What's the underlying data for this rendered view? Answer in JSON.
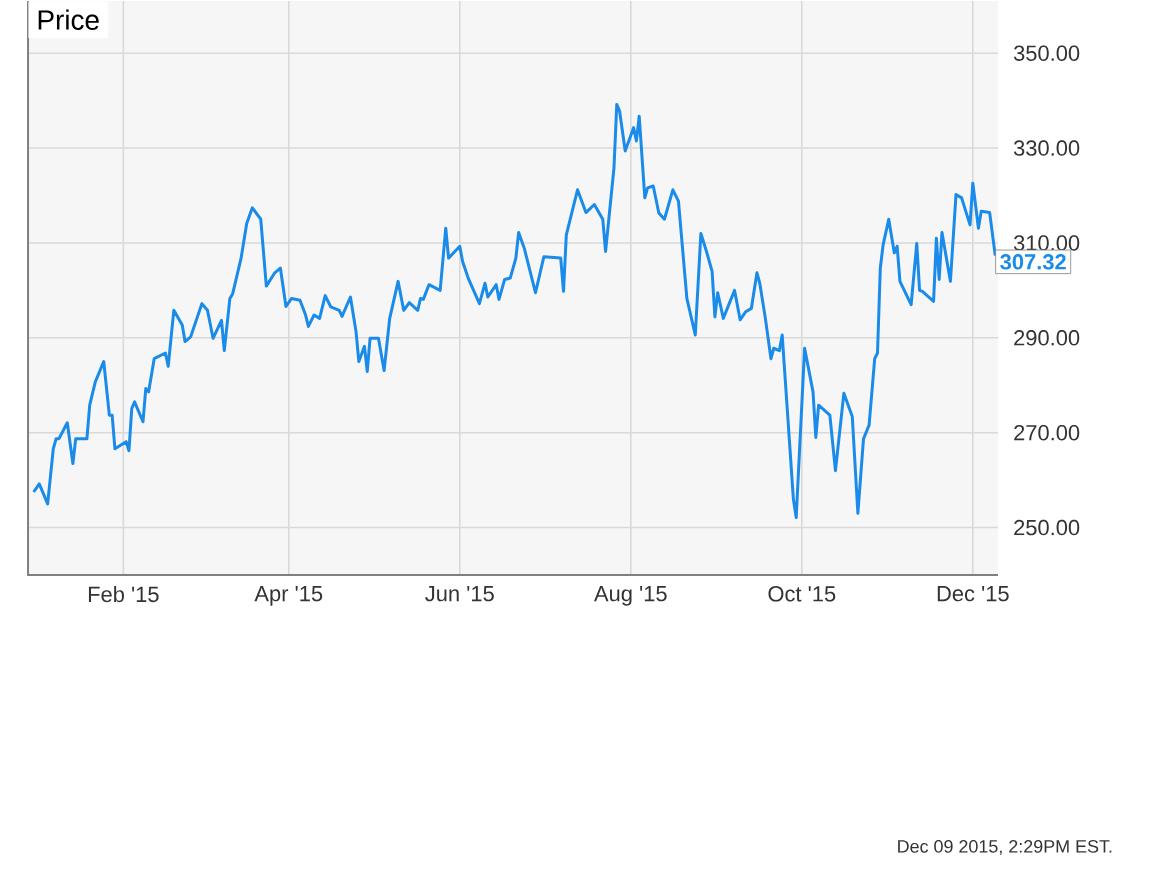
{
  "chart_data": {
    "type": "line",
    "title": "Price",
    "x": [
      "2014-12-31",
      "2015-01-02",
      "2015-01-05",
      "2015-01-07",
      "2015-01-08",
      "2015-01-09",
      "2015-01-12",
      "2015-01-14",
      "2015-01-15",
      "2015-01-19",
      "2015-01-20",
      "2015-01-21",
      "2015-01-22",
      "2015-01-25",
      "2015-01-27",
      "2015-01-28",
      "2015-01-29",
      "2015-02-02",
      "2015-02-03",
      "2015-02-04",
      "2015-02-05",
      "2015-02-08",
      "2015-02-09",
      "2015-02-10",
      "2015-02-12",
      "2015-02-16",
      "2015-02-17",
      "2015-02-19",
      "2015-02-22",
      "2015-02-23",
      "2015-02-25",
      "2015-03-01",
      "2015-03-03",
      "2015-03-05",
      "2015-03-08",
      "2015-03-09",
      "2015-03-11",
      "2015-03-12",
      "2015-03-15",
      "2015-03-17",
      "2015-03-19",
      "2015-03-22",
      "2015-03-24",
      "2015-03-27",
      "2015-03-29",
      "2015-03-31",
      "2015-04-02",
      "2015-04-05",
      "2015-04-07",
      "2015-04-08",
      "2015-04-10",
      "2015-04-12",
      "2015-04-14",
      "2015-04-16",
      "2015-04-19",
      "2015-04-20",
      "2015-04-23",
      "2015-04-25",
      "2015-04-26",
      "2015-04-28",
      "2015-04-29",
      "2015-04-30",
      "2015-05-03",
      "2015-05-05",
      "2015-05-07",
      "2015-05-10",
      "2015-05-12",
      "2015-05-14",
      "2015-05-17",
      "2015-05-18",
      "2015-05-19",
      "2015-05-21",
      "2015-05-25",
      "2015-05-27",
      "2015-05-28",
      "2015-06-01",
      "2015-06-02",
      "2015-06-04",
      "2015-06-08",
      "2015-06-10",
      "2015-06-11",
      "2015-06-14",
      "2015-06-15",
      "2015-06-17",
      "2015-06-19",
      "2015-06-21",
      "2015-06-22",
      "2015-06-24",
      "2015-06-28",
      "2015-07-01",
      "2015-07-07",
      "2015-07-08",
      "2015-07-09",
      "2015-07-13",
      "2015-07-16",
      "2015-07-19",
      "2015-07-22",
      "2015-07-23",
      "2015-07-26",
      "2015-07-27",
      "2015-07-28",
      "2015-07-30",
      "2015-08-02",
      "2015-08-03",
      "2015-08-04",
      "2015-08-06",
      "2015-08-07",
      "2015-08-09",
      "2015-08-11",
      "2015-08-13",
      "2015-08-16",
      "2015-08-18",
      "2015-08-21",
      "2015-08-24",
      "2015-08-26",
      "2015-08-28",
      "2015-08-30",
      "2015-08-31",
      "2015-09-01",
      "2015-09-03",
      "2015-09-07",
      "2015-09-09",
      "2015-09-11",
      "2015-09-13",
      "2015-09-15",
      "2015-09-16",
      "2015-09-18",
      "2015-09-20",
      "2015-09-21",
      "2015-09-23",
      "2015-09-24",
      "2015-09-28",
      "2015-09-29",
      "2015-10-02",
      "2015-10-05",
      "2015-10-06",
      "2015-10-07",
      "2015-10-11",
      "2015-10-13",
      "2015-10-16",
      "2015-10-19",
      "2015-10-21",
      "2015-10-23",
      "2015-10-25",
      "2015-10-27",
      "2015-10-28",
      "2015-10-29",
      "2015-10-30",
      "2015-11-01",
      "2015-11-03",
      "2015-11-04",
      "2015-11-05",
      "2015-11-09",
      "2015-11-11",
      "2015-11-12",
      "2015-11-13",
      "2015-11-17",
      "2015-11-18",
      "2015-11-19",
      "2015-11-20",
      "2015-11-23",
      "2015-11-25",
      "2015-11-27",
      "2015-11-30",
      "2015-12-01",
      "2015-12-03",
      "2015-12-04",
      "2015-12-07",
      "2015-12-09"
    ],
    "series": [
      {
        "color": "#1a8be8",
        "values": [
          257.5,
          259.2,
          255.0,
          266.6,
          268.7,
          268.7,
          272.1,
          263.5,
          268.7,
          268.7,
          275.8,
          278.3,
          280.7,
          285.0,
          273.7,
          273.7,
          266.6,
          268.1,
          266.2,
          275.1,
          276.5,
          272.3,
          279.3,
          278.6,
          285.6,
          286.8,
          284.0,
          295.8,
          292.7,
          289.2,
          290.2,
          297.2,
          295.8,
          289.9,
          293.7,
          287.3,
          298.3,
          299.3,
          306.8,
          314.1,
          317.4,
          315.0,
          300.9,
          303.7,
          304.7,
          296.6,
          298.3,
          297.9,
          294.8,
          292.4,
          294.8,
          294.1,
          298.9,
          296.5,
          295.8,
          294.5,
          298.6,
          291.3,
          285.0,
          288.2,
          282.9,
          289.9,
          289.9,
          283.1,
          294.1,
          301.9,
          295.8,
          297.4,
          295.8,
          298.3,
          298.1,
          301.2,
          300.0,
          313.1,
          306.8,
          309.3,
          306.1,
          302.6,
          297.2,
          301.5,
          298.6,
          301.2,
          298.1,
          302.3,
          302.6,
          306.8,
          312.2,
          308.9,
          299.5,
          307.1,
          306.8,
          299.8,
          311.7,
          321.2,
          316.4,
          318.1,
          315.0,
          308.2,
          325.8,
          339.2,
          337.8,
          329.4,
          334.3,
          331.5,
          336.7,
          319.5,
          321.6,
          322.0,
          316.3,
          315.0,
          321.2,
          318.8,
          298.3,
          290.6,
          312.0,
          308.2,
          304.0,
          294.4,
          299.5,
          294.1,
          300.0,
          293.8,
          295.5,
          296.2,
          303.7,
          301.5,
          294.1,
          285.6,
          287.8,
          287.3,
          290.6,
          256.0,
          252.1,
          287.8,
          278.6,
          269.0,
          275.8,
          273.7,
          262.0,
          278.3,
          273.4,
          253.0,
          268.7,
          271.6,
          285.6,
          286.8,
          304.7,
          309.6,
          315.0,
          307.9,
          309.3,
          301.9,
          297.0,
          309.9,
          300.0,
          299.8,
          297.7,
          311.0,
          302.3,
          312.2,
          301.9,
          320.2,
          319.5,
          313.8,
          322.6,
          313.1,
          316.7,
          316.4,
          307.32
        ]
      }
    ],
    "xlim": [
      "2014-12-29",
      "2015-12-10"
    ],
    "xticks": [
      {
        "value": "2015-02-01",
        "label": "Feb '15"
      },
      {
        "value": "2015-04-01",
        "label": "Apr '15"
      },
      {
        "value": "2015-06-01",
        "label": "Jun '15"
      },
      {
        "value": "2015-08-01",
        "label": "Aug '15"
      },
      {
        "value": "2015-10-01",
        "label": "Oct '15"
      },
      {
        "value": "2015-12-01",
        "label": "Dec '15"
      }
    ],
    "ylim": [
      240,
      361
    ],
    "yticks": [
      {
        "value": 250,
        "label": "250.00"
      },
      {
        "value": 270,
        "label": "270.00"
      },
      {
        "value": 290,
        "label": "290.00"
      },
      {
        "value": 310,
        "label": "310.00"
      },
      {
        "value": 330,
        "label": "330.00"
      },
      {
        "value": 350,
        "label": "350.00"
      }
    ],
    "grid": true,
    "annotations": [
      {
        "text": "307.32",
        "x": "2015-12-09",
        "y": 307.32
      },
      "Dec 09 2015, 2:29PM EST."
    ]
  }
}
